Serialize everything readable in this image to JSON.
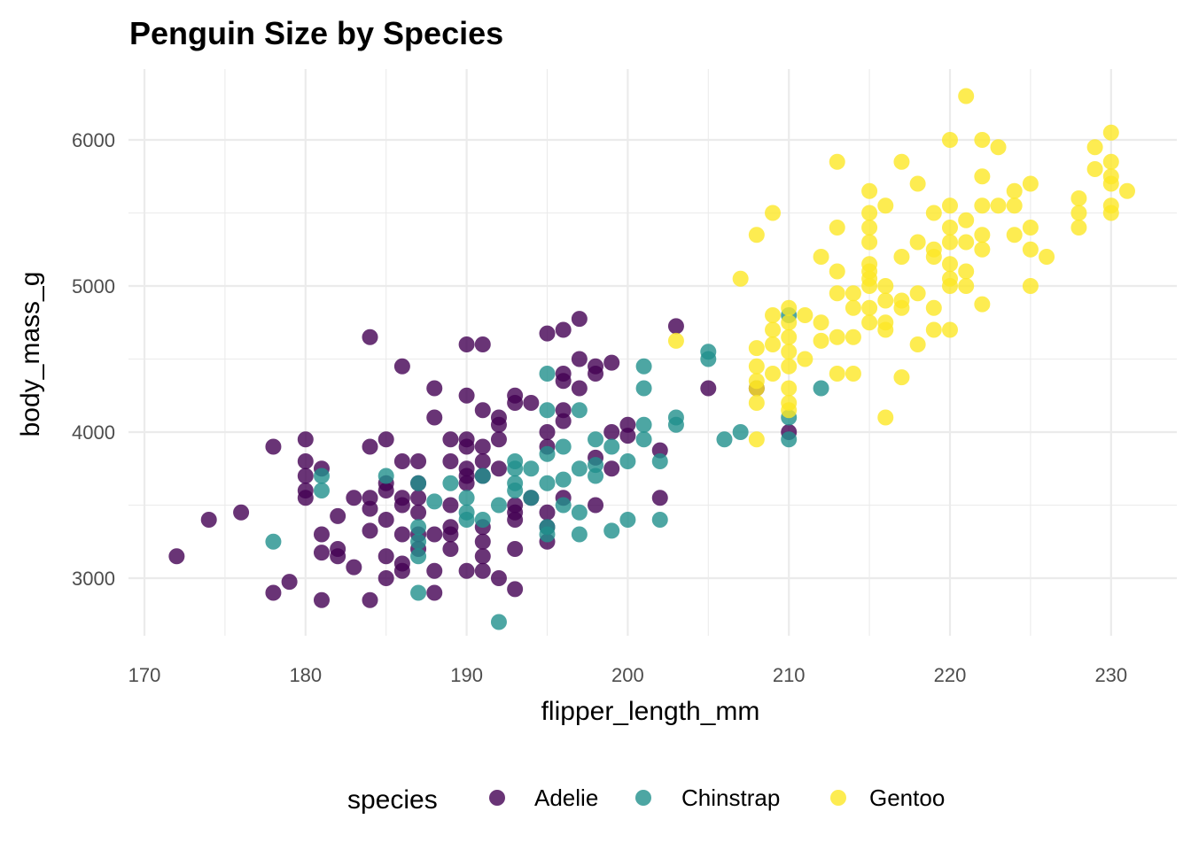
{
  "chart_data": {
    "type": "scatter",
    "title": "Penguin Size by Species",
    "xlabel": "flipper_length_mm",
    "ylabel": "body_mass_g",
    "xlim": [
      169,
      232
    ],
    "ylim": [
      2550,
      6500
    ],
    "xticks": [
      170,
      180,
      190,
      200,
      210,
      220,
      230
    ],
    "yticks": [
      3000,
      4000,
      5000,
      6000
    ],
    "grid": true,
    "legend": {
      "title": "species",
      "placement": "bottom"
    },
    "series": [
      {
        "name": "Adelie",
        "color": "#440154",
        "points": [
          [
            172,
            3150
          ],
          [
            174,
            3400
          ],
          [
            176,
            3450
          ],
          [
            178,
            3900
          ],
          [
            178,
            2900
          ],
          [
            179,
            2975
          ],
          [
            180,
            3950
          ],
          [
            180,
            3800
          ],
          [
            180,
            3700
          ],
          [
            180,
            3600
          ],
          [
            180,
            3550
          ],
          [
            181,
            3750
          ],
          [
            181,
            3300
          ],
          [
            181,
            3175
          ],
          [
            181,
            2850
          ],
          [
            182,
            3425
          ],
          [
            182,
            3200
          ],
          [
            182,
            3150
          ],
          [
            183,
            3550
          ],
          [
            183,
            3075
          ],
          [
            184,
            4650
          ],
          [
            184,
            3900
          ],
          [
            184,
            3550
          ],
          [
            184,
            3475
          ],
          [
            184,
            3325
          ],
          [
            184,
            2850
          ],
          [
            185,
            3950
          ],
          [
            185,
            3650
          ],
          [
            185,
            3600
          ],
          [
            185,
            3400
          ],
          [
            185,
            3150
          ],
          [
            185,
            3000
          ],
          [
            186,
            4450
          ],
          [
            186,
            3800
          ],
          [
            186,
            3550
          ],
          [
            186,
            3500
          ],
          [
            186,
            3300
          ],
          [
            186,
            3100
          ],
          [
            186,
            3050
          ],
          [
            187,
            3800
          ],
          [
            187,
            3650
          ],
          [
            187,
            3550
          ],
          [
            187,
            3450
          ],
          [
            187,
            3300
          ],
          [
            187,
            3200
          ],
          [
            188,
            4300
          ],
          [
            188,
            4100
          ],
          [
            188,
            3300
          ],
          [
            188,
            3050
          ],
          [
            188,
            2900
          ],
          [
            189,
            3950
          ],
          [
            189,
            3800
          ],
          [
            189,
            3500
          ],
          [
            189,
            3350
          ],
          [
            189,
            3300
          ],
          [
            189,
            3200
          ],
          [
            190,
            4600
          ],
          [
            190,
            4250
          ],
          [
            190,
            3950
          ],
          [
            190,
            3900
          ],
          [
            190,
            3750
          ],
          [
            190,
            3700
          ],
          [
            190,
            3650
          ],
          [
            190,
            3050
          ],
          [
            191,
            4600
          ],
          [
            191,
            4150
          ],
          [
            191,
            3900
          ],
          [
            191,
            3800
          ],
          [
            191,
            3700
          ],
          [
            191,
            3350
          ],
          [
            191,
            3250
          ],
          [
            191,
            3150
          ],
          [
            191,
            3050
          ],
          [
            192,
            4100
          ],
          [
            192,
            4050
          ],
          [
            192,
            3950
          ],
          [
            192,
            3750
          ],
          [
            192,
            3000
          ],
          [
            193,
            4250
          ],
          [
            193,
            4200
          ],
          [
            193,
            3500
          ],
          [
            193,
            3400
          ],
          [
            193,
            3450
          ],
          [
            193,
            3200
          ],
          [
            193,
            2925
          ],
          [
            194,
            4200
          ],
          [
            194,
            3550
          ],
          [
            195,
            4675
          ],
          [
            195,
            4000
          ],
          [
            195,
            3900
          ],
          [
            195,
            3450
          ],
          [
            195,
            3350
          ],
          [
            195,
            3250
          ],
          [
            196,
            4700
          ],
          [
            196,
            4400
          ],
          [
            196,
            4350
          ],
          [
            196,
            4150
          ],
          [
            196,
            4075
          ],
          [
            196,
            3550
          ],
          [
            197,
            4775
          ],
          [
            197,
            4500
          ],
          [
            197,
            4300
          ],
          [
            198,
            4450
          ],
          [
            198,
            4400
          ],
          [
            198,
            3825
          ],
          [
            198,
            3500
          ],
          [
            199,
            4475
          ],
          [
            199,
            4000
          ],
          [
            199,
            3750
          ],
          [
            200,
            4050
          ],
          [
            200,
            3975
          ],
          [
            202,
            3875
          ],
          [
            202,
            3550
          ],
          [
            203,
            4725
          ],
          [
            205,
            4300
          ],
          [
            210,
            4000
          ],
          [
            208,
            4300
          ]
        ]
      },
      {
        "name": "Chinstrap",
        "color": "#21908C",
        "points": [
          [
            178,
            3250
          ],
          [
            181,
            3700
          ],
          [
            181,
            3600
          ],
          [
            185,
            3700
          ],
          [
            187,
            3650
          ],
          [
            187,
            3350
          ],
          [
            187,
            3250
          ],
          [
            187,
            3150
          ],
          [
            187,
            2900
          ],
          [
            188,
            3525
          ],
          [
            189,
            3650
          ],
          [
            190,
            3550
          ],
          [
            190,
            3450
          ],
          [
            190,
            3400
          ],
          [
            191,
            3700
          ],
          [
            191,
            3400
          ],
          [
            192,
            3500
          ],
          [
            192,
            2700
          ],
          [
            193,
            3800
          ],
          [
            193,
            3750
          ],
          [
            193,
            3650
          ],
          [
            193,
            3600
          ],
          [
            194,
            3750
          ],
          [
            194,
            3550
          ],
          [
            195,
            4400
          ],
          [
            195,
            4150
          ],
          [
            195,
            3850
          ],
          [
            195,
            3650
          ],
          [
            195,
            3350
          ],
          [
            195,
            3300
          ],
          [
            196,
            3900
          ],
          [
            196,
            3675
          ],
          [
            196,
            3500
          ],
          [
            197,
            4150
          ],
          [
            197,
            3750
          ],
          [
            197,
            3450
          ],
          [
            197,
            3300
          ],
          [
            198,
            3950
          ],
          [
            198,
            3775
          ],
          [
            198,
            3700
          ],
          [
            199,
            3900
          ],
          [
            199,
            3325
          ],
          [
            200,
            3800
          ],
          [
            200,
            3400
          ],
          [
            201,
            4450
          ],
          [
            201,
            4300
          ],
          [
            201,
            4050
          ],
          [
            201,
            3950
          ],
          [
            202,
            3800
          ],
          [
            202,
            3400
          ],
          [
            203,
            4100
          ],
          [
            203,
            4050
          ],
          [
            205,
            4550
          ],
          [
            205,
            4500
          ],
          [
            206,
            3950
          ],
          [
            207,
            4000
          ],
          [
            210,
            4800
          ],
          [
            210,
            4100
          ],
          [
            210,
            3950
          ],
          [
            212,
            4300
          ]
        ]
      },
      {
        "name": "Gentoo",
        "color": "#FDE725",
        "points": [
          [
            203,
            4625
          ],
          [
            207,
            5050
          ],
          [
            208,
            5350
          ],
          [
            208,
            4575
          ],
          [
            208,
            4450
          ],
          [
            208,
            4350
          ],
          [
            208,
            4300
          ],
          [
            208,
            4200
          ],
          [
            208,
            3950
          ],
          [
            209,
            5500
          ],
          [
            209,
            4800
          ],
          [
            209,
            4700
          ],
          [
            209,
            4600
          ],
          [
            209,
            4400
          ],
          [
            210,
            4850
          ],
          [
            210,
            4750
          ],
          [
            210,
            4650
          ],
          [
            210,
            4550
          ],
          [
            210,
            4450
          ],
          [
            210,
            4300
          ],
          [
            210,
            4200
          ],
          [
            210,
            4150
          ],
          [
            211,
            4500
          ],
          [
            211,
            4800
          ],
          [
            212,
            5200
          ],
          [
            212,
            4750
          ],
          [
            212,
            4625
          ],
          [
            213,
            5850
          ],
          [
            213,
            5400
          ],
          [
            213,
            5100
          ],
          [
            213,
            4950
          ],
          [
            213,
            4650
          ],
          [
            213,
            4400
          ],
          [
            214,
            4950
          ],
          [
            214,
            4850
          ],
          [
            214,
            4650
          ],
          [
            214,
            4400
          ],
          [
            215,
            5650
          ],
          [
            215,
            5500
          ],
          [
            215,
            5400
          ],
          [
            215,
            5300
          ],
          [
            215,
            5150
          ],
          [
            215,
            5100
          ],
          [
            215,
            5050
          ],
          [
            215,
            5000
          ],
          [
            215,
            4850
          ],
          [
            215,
            4750
          ],
          [
            216,
            5550
          ],
          [
            216,
            5000
          ],
          [
            216,
            4900
          ],
          [
            216,
            4750
          ],
          [
            216,
            4700
          ],
          [
            216,
            4100
          ],
          [
            217,
            5850
          ],
          [
            217,
            5200
          ],
          [
            217,
            4900
          ],
          [
            217,
            4850
          ],
          [
            217,
            4375
          ],
          [
            218,
            5700
          ],
          [
            218,
            5300
          ],
          [
            218,
            4950
          ],
          [
            218,
            4600
          ],
          [
            219,
            5500
          ],
          [
            219,
            5250
          ],
          [
            219,
            5200
          ],
          [
            219,
            4850
          ],
          [
            219,
            4700
          ],
          [
            220,
            6000
          ],
          [
            220,
            5550
          ],
          [
            220,
            5400
          ],
          [
            220,
            5300
          ],
          [
            220,
            5150
          ],
          [
            220,
            5050
          ],
          [
            220,
            5000
          ],
          [
            220,
            4700
          ],
          [
            221,
            6300
          ],
          [
            221,
            5450
          ],
          [
            221,
            5300
          ],
          [
            221,
            5100
          ],
          [
            221,
            5000
          ],
          [
            222,
            6000
          ],
          [
            222,
            5750
          ],
          [
            222,
            5550
          ],
          [
            222,
            5350
          ],
          [
            222,
            5250
          ],
          [
            222,
            4875
          ],
          [
            223,
            5950
          ],
          [
            223,
            5550
          ],
          [
            224,
            5650
          ],
          [
            224,
            5550
          ],
          [
            224,
            5350
          ],
          [
            225,
            5700
          ],
          [
            225,
            5400
          ],
          [
            225,
            5250
          ],
          [
            225,
            5000
          ],
          [
            226,
            5200
          ],
          [
            228,
            5600
          ],
          [
            228,
            5500
          ],
          [
            228,
            5400
          ],
          [
            229,
            5950
          ],
          [
            229,
            5800
          ],
          [
            230,
            6050
          ],
          [
            230,
            5850
          ],
          [
            230,
            5750
          ],
          [
            230,
            5700
          ],
          [
            230,
            5550
          ],
          [
            230,
            5500
          ],
          [
            231,
            5650
          ]
        ]
      }
    ]
  }
}
